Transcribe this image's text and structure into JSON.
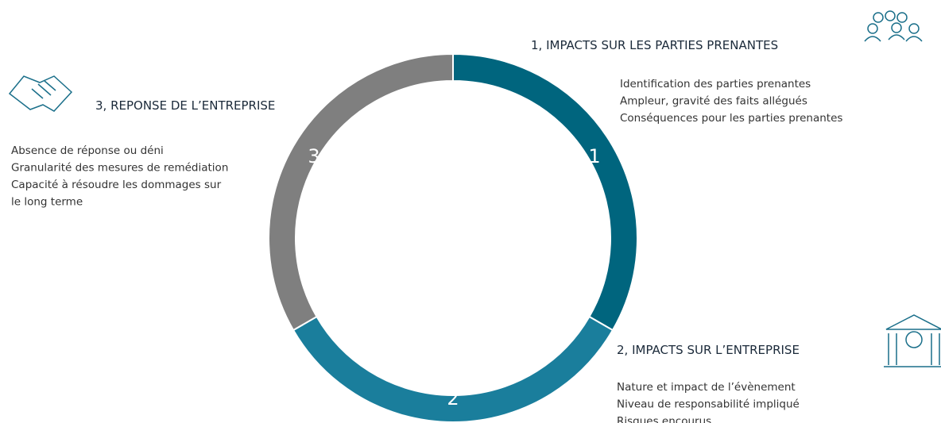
{
  "sections": [
    {
      "number": "1",
      "title": "1, IMPACTS SUR LES PARTIES PRENANTES",
      "lines": [
        "Identification des parties prenantes",
        "Ampleur, gravité des faits allégués",
        "Conséquences pour les parties prenantes"
      ]
    },
    {
      "number": "2",
      "title": "2, IMPACTS SUR L’ENTREPRISE",
      "lines": [
        "Nature et impact de l’évènement",
        "Niveau de responsabilité impliqué",
        "Risques encourus"
      ]
    },
    {
      "number": "3",
      "title": "3, REPONSE DE L’ENTREPRISE",
      "lines": [
        "Absence de réponse ou déni",
        "Granularité des mesures de remédiation",
        "Capacité à résoudre les dommages sur",
        "le long terme"
      ]
    }
  ]
}
